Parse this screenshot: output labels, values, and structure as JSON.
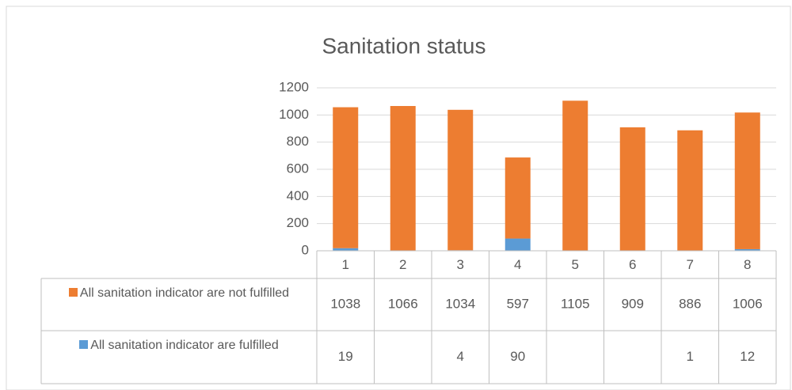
{
  "chart_data": {
    "type": "stacked_bar",
    "title": "Sanitation status",
    "categories": [
      "1",
      "2",
      "3",
      "4",
      "5",
      "6",
      "7",
      "8"
    ],
    "series": [
      {
        "name": "All sanitation indicator are not fulfilled",
        "color": "#ed7d31",
        "values": [
          1038,
          1066,
          1034,
          597,
          1105,
          909,
          886,
          1006
        ]
      },
      {
        "name": "All sanitation indicator are fulfilled",
        "color": "#5b9bd5",
        "values": [
          19,
          null,
          4,
          90,
          null,
          null,
          1,
          12
        ]
      }
    ],
    "ylim": [
      0,
      1200
    ],
    "yticks": [
      0,
      200,
      400,
      600,
      800,
      1000,
      1200
    ],
    "grid": true,
    "data_table": true
  }
}
